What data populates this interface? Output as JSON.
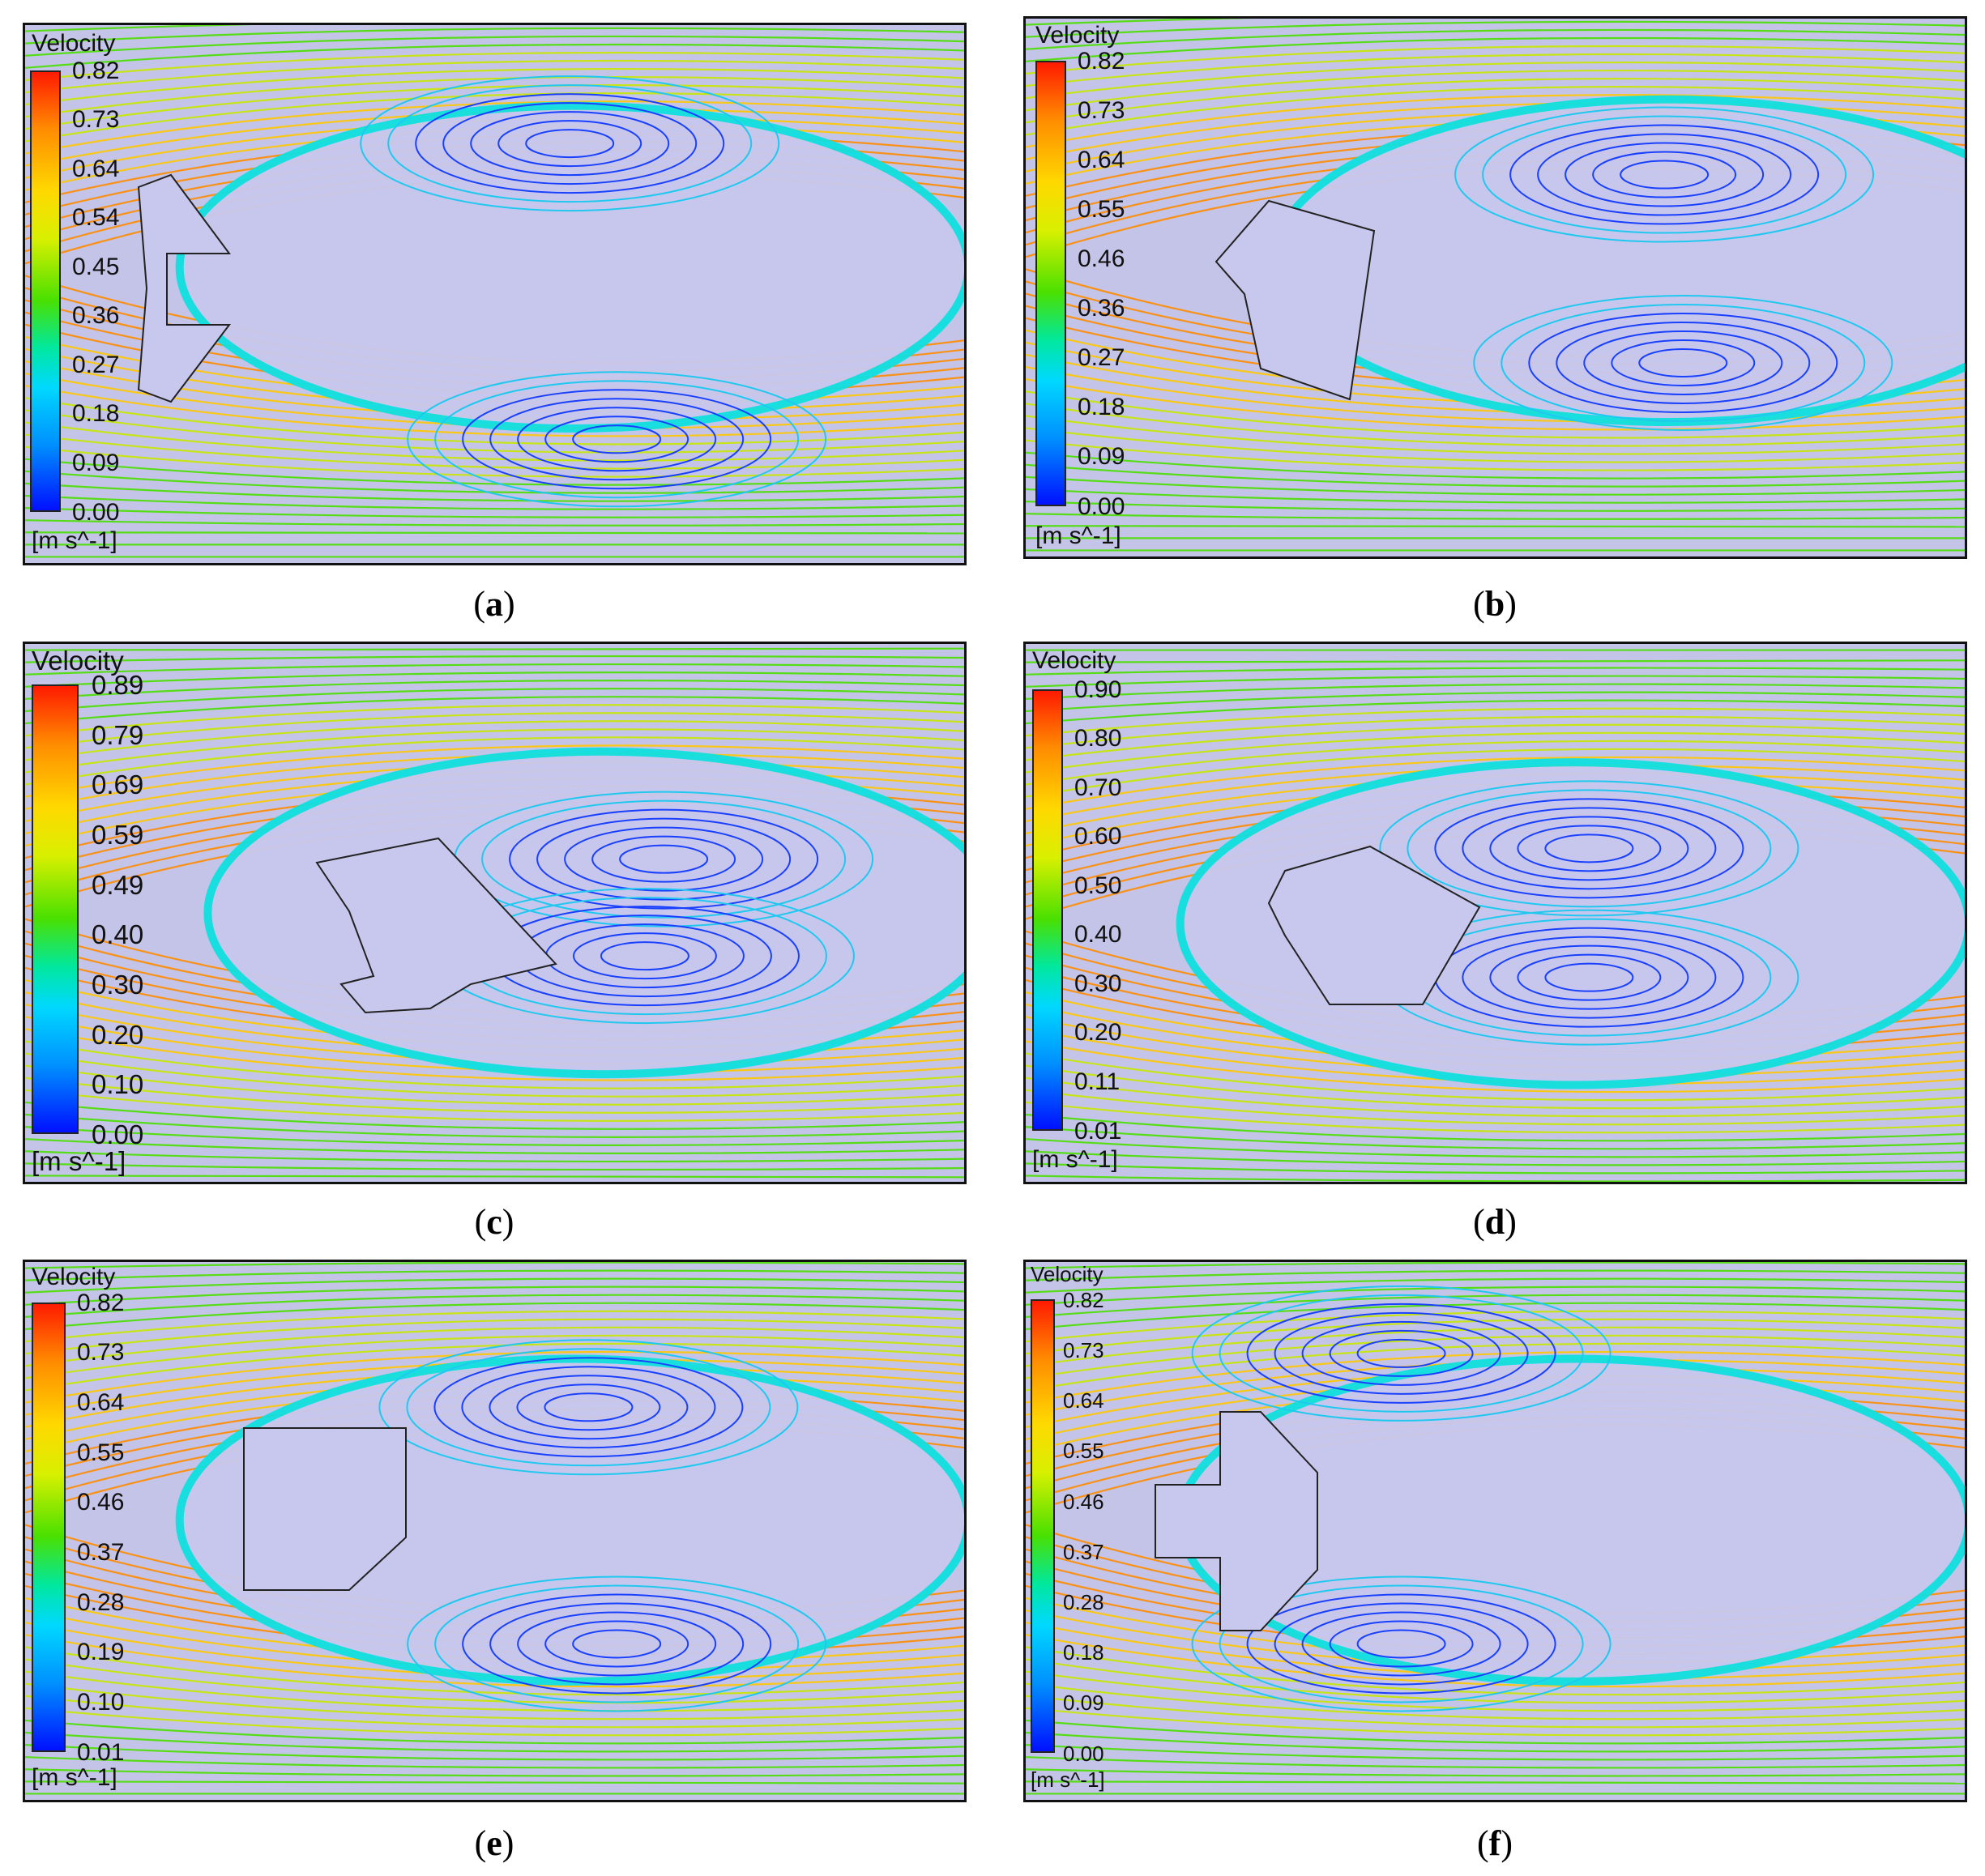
{
  "panels": [
    {
      "id": "a",
      "caption_letter": "a",
      "legend_title": "Velocity",
      "unit": "[m s^-1]",
      "ticks": [
        "0.82",
        "0.73",
        "0.64",
        "0.54",
        "0.45",
        "0.36",
        "0.27",
        "0.18",
        "0.09",
        "0.00"
      ]
    },
    {
      "id": "b",
      "caption_letter": "b",
      "legend_title": "Velocity",
      "unit": "[m s^-1]",
      "ticks": [
        "0.82",
        "0.73",
        "0.64",
        "0.55",
        "0.46",
        "0.36",
        "0.27",
        "0.18",
        "0.09",
        "0.00"
      ]
    },
    {
      "id": "c",
      "caption_letter": "c",
      "legend_title": "Velocity",
      "unit": "[m s^-1]",
      "ticks": [
        "0.89",
        "0.79",
        "0.69",
        "0.59",
        "0.49",
        "0.40",
        "0.30",
        "0.20",
        "0.10",
        "0.00"
      ]
    },
    {
      "id": "d",
      "caption_letter": "d",
      "legend_title": "Velocity",
      "unit": "[m s^-1]",
      "ticks": [
        "0.90",
        "0.80",
        "0.70",
        "0.60",
        "0.50",
        "0.40",
        "0.30",
        "0.20",
        "0.11",
        "0.01"
      ]
    },
    {
      "id": "e",
      "caption_letter": "e",
      "legend_title": "Velocity",
      "unit": "[m s^-1]",
      "ticks": [
        "0.82",
        "0.73",
        "0.64",
        "0.55",
        "0.46",
        "0.37",
        "0.28",
        "0.19",
        "0.10",
        "0.01"
      ]
    },
    {
      "id": "f",
      "caption_letter": "f",
      "legend_title": "Velocity",
      "unit": "[m s^-1]",
      "ticks": [
        "0.82",
        "0.73",
        "0.64",
        "0.55",
        "0.46",
        "0.37",
        "0.28",
        "0.18",
        "0.09",
        "0.00"
      ]
    }
  ],
  "colors": {
    "background": "#c4c4e8",
    "stream_fast": "#ff8c00",
    "stream_mid": "#4ae000",
    "stream_slow": "#1a40ff",
    "body_fill": "#c8c8ee"
  }
}
